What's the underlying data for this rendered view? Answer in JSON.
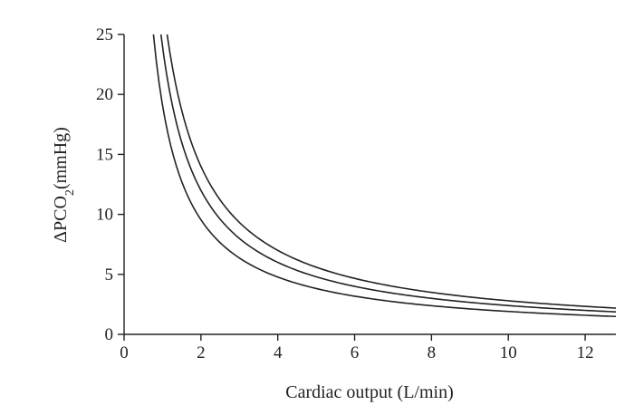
{
  "chart_data": {
    "type": "line",
    "xlabel": "Cardiac output (L/min)",
    "ylabel": {
      "prefix": "ΔPCO",
      "subscript": "2",
      "suffix": "(mmHg)"
    },
    "xlim": [
      0,
      12.8
    ],
    "ylim": [
      0,
      25
    ],
    "xticks": [
      "0",
      "2",
      "4",
      "6",
      "8",
      "10",
      "12"
    ],
    "yticks": [
      "0",
      "5",
      "10",
      "15",
      "20",
      "25"
    ],
    "grid": false,
    "series": [
      {
        "x": [
          0.75,
          1,
          1.5,
          2,
          3,
          4,
          6,
          8,
          10,
          12.8
        ],
        "y": [
          25,
          19.1,
          12.7,
          9.55,
          6.37,
          4.78,
          3.18,
          2.39,
          1.91,
          1.49
        ]
      },
      {
        "x": [
          0.96,
          1.5,
          2,
          3,
          4,
          6,
          8,
          10,
          12.8
        ],
        "y": [
          25,
          16,
          12,
          8,
          6,
          4,
          3,
          2.4,
          1.88
        ]
      },
      {
        "x": [
          1.12,
          1.5,
          2,
          3,
          4,
          6,
          8,
          10,
          12.8
        ],
        "y": [
          25,
          18.7,
          14,
          9.33,
          7,
          4.67,
          3.5,
          2.8,
          2.19
        ]
      }
    ],
    "series_k": [
      19.1,
      24,
      28
    ]
  }
}
